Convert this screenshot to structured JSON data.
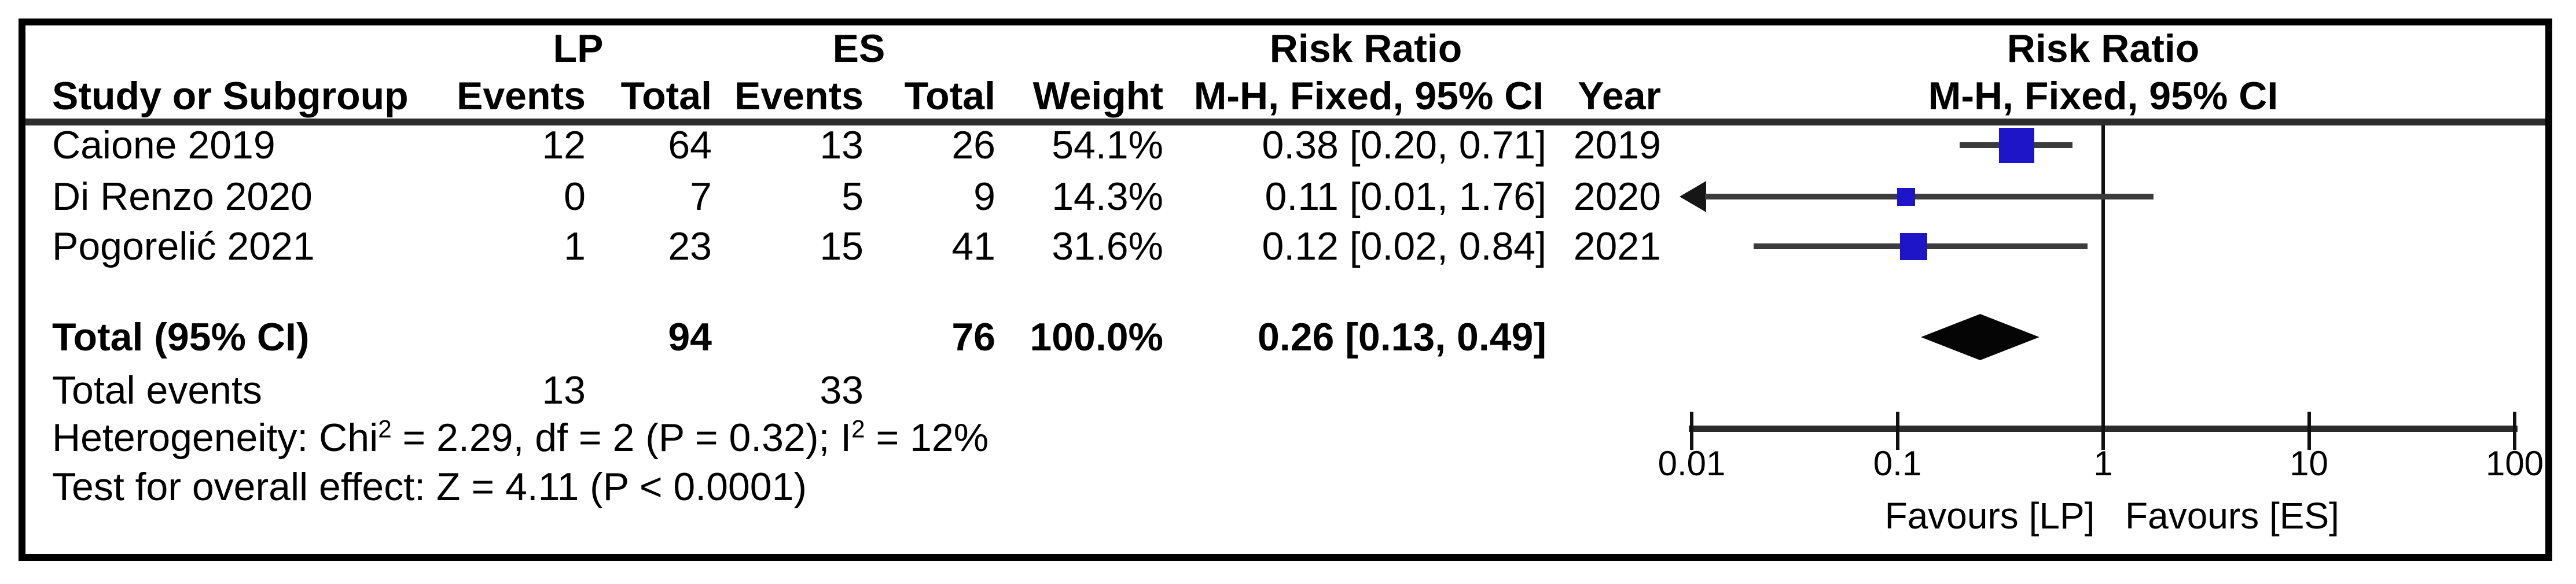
{
  "figure": {
    "group_headers": {
      "lp": "LP",
      "es": "ES",
      "risk_ratio": "Risk Ratio"
    },
    "column_headers": {
      "study": "Study or Subgroup",
      "events": "Events",
      "total": "Total",
      "weight": "Weight",
      "method": "M-H, Fixed, 95% CI",
      "year": "Year"
    },
    "stats": {
      "total_events_label": "Total events",
      "total_events_lp": "13",
      "total_events_es": "33",
      "heterogeneity": {
        "pre": "Heterogeneity: Chi",
        "sup1": "2",
        "mid": " = 2.29, df = 2 (P = 0.32); I",
        "sup2": "2",
        "post": " = 12%"
      },
      "overall_effect": "Test for overall effect: Z = 4.11 (P < 0.0001)"
    }
  },
  "chart_data": {
    "type": "forest",
    "effect_measure": "Risk Ratio",
    "method": "M-H, Fixed, 95% CI",
    "x_scale": "log",
    "x_range": [
      0.01,
      100
    ],
    "x_ticks": [
      0.01,
      0.1,
      1,
      10,
      100
    ],
    "x_tick_labels": [
      "0.01",
      "0.1",
      "1",
      "10",
      "100"
    ],
    "null_line": 1,
    "favours_left": "Favours [LP]",
    "favours_right": "Favours [ES]",
    "studies": [
      {
        "name": "Caione 2019",
        "lp_events": "12",
        "lp_total": "64",
        "es_events": "13",
        "es_total": "26",
        "weight": "54.1%",
        "weight_pct": 54.1,
        "rr": 0.38,
        "ci_low": 0.2,
        "ci_high": 0.71,
        "ci_label": "0.38 [0.20, 0.71]",
        "year": "2019",
        "arrow_low": false
      },
      {
        "name": "Di Renzo 2020",
        "lp_events": "0",
        "lp_total": "7",
        "es_events": "5",
        "es_total": "9",
        "weight": "14.3%",
        "weight_pct": 14.3,
        "rr": 0.11,
        "ci_low": 0.01,
        "ci_high": 1.76,
        "ci_label": "0.11 [0.01, 1.76]",
        "year": "2020",
        "arrow_low": true
      },
      {
        "name": "Pogorelić 2021",
        "lp_events": "1",
        "lp_total": "23",
        "es_events": "15",
        "es_total": "41",
        "weight": "31.6%",
        "weight_pct": 31.6,
        "rr": 0.12,
        "ci_low": 0.02,
        "ci_high": 0.84,
        "ci_label": "0.12 [0.02, 0.84]",
        "year": "2021",
        "arrow_low": false
      }
    ],
    "total": {
      "label": "Total (95% CI)",
      "lp_total": "94",
      "es_total": "76",
      "weight": "100.0%",
      "rr": 0.26,
      "ci_low": 0.13,
      "ci_high": 0.49,
      "ci_label": "0.26 [0.13, 0.49]"
    },
    "colors": {
      "square": "#1e14c8",
      "ci_line": "#3c3c3c",
      "diamond": "#050505",
      "axis": "#2b2b2b",
      "text": "#000000"
    }
  }
}
